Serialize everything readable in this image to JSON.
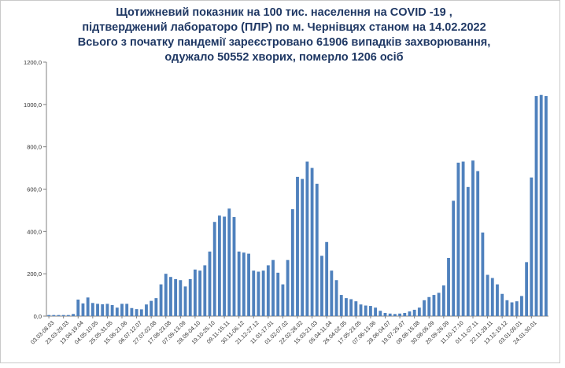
{
  "chart_data": {
    "type": "bar",
    "title_lines": [
      "Щотижневий показник  на 100 тис. населення на COVID -19 ,",
      "підтверджений лабораторо (ПЛР) по м. Чернівцях станом на 14.02.2022",
      "Всього з початку пандемії зареєстровано 61906 випадків захворювання,",
      "одужало 50552 хворих, померло 1206 осіб"
    ],
    "xlabel": "",
    "ylabel": "",
    "ylim": [
      0,
      1200
    ],
    "y_ticks": [
      "0,0",
      "200,0",
      "400,0",
      "600,0",
      "800,0",
      "1000,0",
      "1200,0"
    ],
    "bar_color": "#4f81bd",
    "grid": false,
    "legend": "none",
    "values": [
      5,
      5,
      5,
      5,
      5,
      10,
      78,
      60,
      88,
      62,
      58,
      56,
      58,
      52,
      40,
      58,
      58,
      38,
      33,
      32,
      55,
      72,
      85,
      150,
      200,
      185,
      175,
      170,
      140,
      175,
      220,
      215,
      240,
      305,
      445,
      475,
      470,
      508,
      468,
      305,
      300,
      295,
      215,
      210,
      215,
      240,
      265,
      205,
      150,
      265,
      505,
      658,
      648,
      730,
      700,
      625,
      285,
      350,
      215,
      170,
      100,
      85,
      80,
      70,
      55,
      50,
      48,
      40,
      25,
      15,
      12,
      10,
      12,
      15,
      22,
      30,
      40,
      75,
      90,
      100,
      110,
      145,
      275,
      545,
      725,
      730,
      610,
      735,
      685,
      395,
      195,
      180,
      150,
      105,
      75,
      65,
      70,
      95,
      255,
      655,
      1040,
      1045,
      1040
    ],
    "x_tick_labels": [
      "03.03-08.03",
      "23.03-29.03",
      "13.04-19.04",
      "04.05-10.05",
      "25.05-31.05",
      "15.06-21.06",
      "06.07-12.07",
      "27.07-02.08",
      "17.08-23.08",
      "07.09-13.09",
      "28.09-04.10",
      "19.10-25.10",
      "09.11-15.11",
      "30.11-06.12",
      "21.12-27.12",
      "11.01-17.01",
      "01.02-07.02",
      "22.02-28.02",
      "15.03-21.03",
      "05.04-11.04",
      "26.04-02.05",
      "17.05-23.05",
      "07.06-13.06",
      "28.06-04.07",
      "19.07-25.07",
      "09.08-15.08",
      "30.08-05.09",
      "20.09-26.09",
      "11.10-17.10",
      "01.11-07.11",
      "22.11-28.11",
      "13.12-19.12",
      "03.01-09.01",
      "24.01-30.01"
    ]
  }
}
